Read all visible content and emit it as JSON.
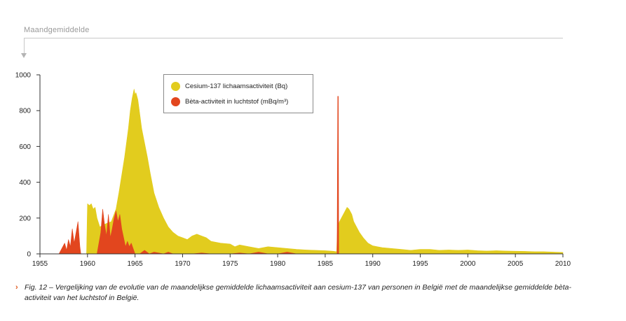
{
  "header": {
    "label": "Maandgemiddelde"
  },
  "legend": {
    "items": [
      {
        "label": "Cesium-137 lichaamsactiviteit (Bq)",
        "color": "#e2cc1e"
      },
      {
        "label": "Bèta-activiteit in luchtstof (mBq/m³)",
        "color": "#e2461e"
      }
    ]
  },
  "caption": {
    "marker": "›",
    "text": "Fig. 12 – Vergelijking van de evolutie van de maandelijkse gemiddelde lichaamsactiviteit aan cesium-137 van personen in België met de maandelijkse gemiddelde bèta-activiteit van het luchtstof in België."
  },
  "chart_data": {
    "type": "area",
    "title": "",
    "xlabel": "",
    "ylabel": "",
    "xlim": [
      1955,
      2010
    ],
    "ylim": [
      0,
      1000
    ],
    "xticks": [
      1955,
      1960,
      1965,
      1970,
      1975,
      1980,
      1985,
      1990,
      1995,
      2000,
      2005,
      2010
    ],
    "yticks": [
      0,
      200,
      400,
      600,
      800,
      1000
    ],
    "grid": false,
    "legend_position": "top-center",
    "series": [
      {
        "name": "Cesium-137 lichaamsactiviteit (Bq)",
        "color": "#e2cc1e",
        "x": [
          1959.9,
          1960.0,
          1960.2,
          1960.4,
          1960.6,
          1960.8,
          1961.0,
          1961.3,
          1961.6,
          1962.0,
          1962.5,
          1963.0,
          1963.3,
          1963.6,
          1963.9,
          1964.1,
          1964.3,
          1964.5,
          1964.7,
          1964.9,
          1965.0,
          1965.1,
          1965.3,
          1965.5,
          1965.7,
          1966.0,
          1966.3,
          1966.6,
          1967.0,
          1967.5,
          1968.0,
          1968.5,
          1969.0,
          1969.5,
          1970.0,
          1970.5,
          1971.0,
          1971.5,
          1972.0,
          1972.5,
          1973.0,
          1974.0,
          1975.0,
          1975.5,
          1976.0,
          1977.0,
          1978.0,
          1979.0,
          1980.0,
          1981.0,
          1982.0,
          1983.0,
          1984.0,
          1985.0,
          1985.8,
          1986.2,
          1986.3,
          1986.5,
          1986.7,
          1987.0,
          1987.3,
          1987.5,
          1987.8,
          1988.0,
          1988.3,
          1988.6,
          1989.0,
          1989.5,
          1990.0,
          1990.5,
          1991.0,
          1992.0,
          1993.0,
          1994.0,
          1995.0,
          1996.0,
          1997.0,
          1998.0,
          1999.0,
          2000.0,
          2001.0,
          2002.0,
          2003.0,
          2004.0,
          2005.0,
          2006.0,
          2007.0,
          2008.0,
          2009.0,
          2010.0
        ],
        "values": [
          0,
          280,
          270,
          280,
          250,
          260,
          200,
          150,
          160,
          170,
          180,
          250,
          340,
          440,
          540,
          620,
          700,
          800,
          870,
          920,
          890,
          900,
          860,
          780,
          700,
          620,
          540,
          450,
          340,
          260,
          200,
          150,
          120,
          100,
          90,
          80,
          100,
          110,
          100,
          90,
          70,
          60,
          55,
          40,
          50,
          40,
          30,
          40,
          35,
          30,
          25,
          22,
          20,
          18,
          15,
          12,
          150,
          180,
          200,
          230,
          260,
          250,
          220,
          180,
          150,
          120,
          90,
          60,
          45,
          40,
          35,
          30,
          25,
          20,
          25,
          25,
          20,
          22,
          20,
          22,
          18,
          16,
          18,
          16,
          15,
          14,
          12,
          12,
          10,
          8
        ]
      },
      {
        "name": "Bèta-activiteit in luchtstof (mBq/m³)",
        "color": "#e2461e",
        "x": [
          1957.0,
          1957.2,
          1957.4,
          1957.6,
          1957.8,
          1958.0,
          1958.2,
          1958.4,
          1958.6,
          1958.8,
          1959.0,
          1959.2,
          1959.3,
          1959.5,
          1959.8,
          1960.2,
          1960.5,
          1960.8,
          1961.0,
          1961.2,
          1961.4,
          1961.6,
          1961.8,
          1962.0,
          1962.2,
          1962.4,
          1962.6,
          1962.8,
          1963.0,
          1963.2,
          1963.4,
          1963.6,
          1963.8,
          1964.0,
          1964.2,
          1964.4,
          1964.6,
          1964.8,
          1965.0,
          1965.5,
          1966.0,
          1966.5,
          1967.0,
          1968.0,
          1968.5,
          1969.0,
          1970.0,
          1971.0,
          1972.0,
          1973.0,
          1974.0,
          1975.0,
          1976.0,
          1977.0,
          1978.0,
          1979.0,
          1980.0,
          1981.0,
          1982.0,
          1983.0,
          1984.0,
          1985.0,
          1986.0,
          1986.25,
          1986.32,
          1986.38,
          1986.42,
          1986.5,
          1987.0,
          1988.0,
          1990.0,
          2010.0
        ],
        "values": [
          0,
          20,
          40,
          60,
          20,
          80,
          40,
          140,
          60,
          120,
          180,
          40,
          0,
          0,
          0,
          0,
          0,
          0,
          0,
          60,
          120,
          250,
          160,
          100,
          220,
          90,
          140,
          200,
          240,
          180,
          220,
          140,
          90,
          40,
          70,
          40,
          60,
          30,
          0,
          0,
          20,
          0,
          10,
          0,
          10,
          0,
          0,
          0,
          5,
          0,
          0,
          0,
          5,
          0,
          10,
          0,
          0,
          10,
          0,
          0,
          0,
          0,
          0,
          0,
          880,
          880,
          0,
          0,
          0,
          0,
          0,
          0
        ]
      }
    ]
  }
}
